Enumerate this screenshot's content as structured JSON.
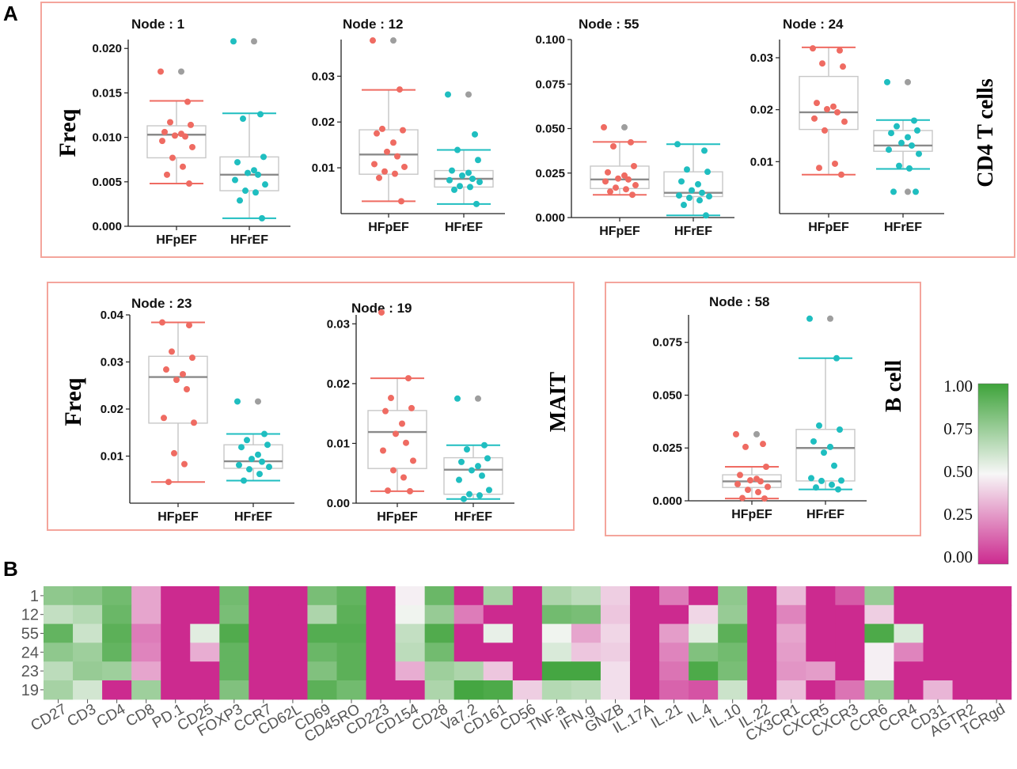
{
  "panel_labels": {
    "a": "A",
    "b": "B"
  },
  "colors": {
    "hfpef": "#ef6b62",
    "hfref": "#1fbec0",
    "outlier": "#9e9e9e",
    "box": "#c8c8c8",
    "median": "#8a8a8a",
    "panel_border": "#f4a59c",
    "heat_low": "#cc2a8f",
    "heat_mid": "#f7f7f7",
    "heat_high": "#3ea33a"
  },
  "group_labels": {
    "cd4": "CD4 T cells",
    "mait": "MAIT",
    "bcell": "B cell"
  },
  "freq_labels": {
    "top": "Freq",
    "bottom": "Freq"
  },
  "chart_data": [
    {
      "type": "box",
      "title": "Node : 1",
      "ylabel": "Freq",
      "ylim": [
        0,
        0.021
      ],
      "yticks": [
        {
          "v": 0,
          "label": "0.000"
        },
        {
          "v": 0.005,
          "label": "0.005"
        },
        {
          "v": 0.01,
          "label": "0.010"
        },
        {
          "v": 0.015,
          "label": "0.015"
        },
        {
          "v": 0.02,
          "label": "0.020"
        }
      ],
      "groups": [
        {
          "name": "HFpEF",
          "q1": 0.0077,
          "median": 0.0103,
          "q3": 0.0113,
          "whisker_low": 0.0048,
          "whisker_high": 0.0141,
          "points": [
            0.0174,
            0.014,
            0.0117,
            0.0114,
            0.0106,
            0.0104,
            0.0102,
            0.0101,
            0.0096,
            0.0089,
            0.0077,
            0.0067,
            0.0058,
            0.0048
          ],
          "outliers": [
            0.0174
          ]
        },
        {
          "name": "HFrEF",
          "q1": 0.004,
          "median": 0.0058,
          "q3": 0.0078,
          "whisker_low": 0.0009,
          "whisker_high": 0.0127,
          "points": [
            0.0208,
            0.0126,
            0.0121,
            0.0078,
            0.0072,
            0.0063,
            0.006,
            0.0058,
            0.0052,
            0.0047,
            0.004,
            0.0038,
            0.0029,
            0.0009
          ],
          "outliers": [
            0.0208
          ]
        }
      ]
    },
    {
      "type": "box",
      "title": "Node : 12",
      "ylabel": "",
      "ylim": [
        0,
        0.038
      ],
      "yticks": [
        {
          "v": 0.01,
          "label": "0.01"
        },
        {
          "v": 0.02,
          "label": "0.02"
        },
        {
          "v": 0.03,
          "label": "0.03"
        }
      ],
      "groups": [
        {
          "name": "HFpEF",
          "q1": 0.0086,
          "median": 0.0129,
          "q3": 0.0183,
          "whisker_low": 0.0027,
          "whisker_high": 0.027,
          "points": [
            0.0378,
            0.0271,
            0.0185,
            0.0182,
            0.0175,
            0.0155,
            0.0135,
            0.0125,
            0.0108,
            0.0102,
            0.0092,
            0.0087,
            0.0078,
            0.0027
          ],
          "outliers": [
            0.0378
          ]
        },
        {
          "name": "HFrEF",
          "q1": 0.0058,
          "median": 0.0076,
          "q3": 0.0094,
          "whisker_low": 0.0021,
          "whisker_high": 0.0139,
          "points": [
            0.026,
            0.0173,
            0.0139,
            0.0117,
            0.0094,
            0.0089,
            0.0083,
            0.0076,
            0.0073,
            0.0069,
            0.006,
            0.0058,
            0.0052,
            0.0021
          ],
          "outliers": [
            0.026
          ]
        }
      ]
    },
    {
      "type": "box",
      "title": "Node : 55",
      "ylabel": "",
      "ylim": [
        0,
        0.1
      ],
      "yticks": [
        {
          "v": 0,
          "label": "0.000"
        },
        {
          "v": 0.025,
          "label": "0.025"
        },
        {
          "v": 0.05,
          "label": "0.050"
        },
        {
          "v": 0.075,
          "label": "0.075"
        },
        {
          "v": 0.1,
          "label": "0.100"
        }
      ],
      "groups": [
        {
          "name": "HFpEF",
          "q1": 0.0163,
          "median": 0.0214,
          "q3": 0.0289,
          "whisker_low": 0.0128,
          "whisker_high": 0.0425,
          "points": [
            0.0507,
            0.0423,
            0.04,
            0.0289,
            0.0254,
            0.0236,
            0.0219,
            0.0214,
            0.0203,
            0.0182,
            0.0168,
            0.0159,
            0.0146,
            0.0128
          ],
          "outliers": [
            0.0507
          ]
        },
        {
          "name": "HFrEF",
          "q1": 0.0118,
          "median": 0.0139,
          "q3": 0.0257,
          "whisker_low": 0.0012,
          "whisker_high": 0.0412,
          "points": [
            0.0412,
            0.0376,
            0.027,
            0.0257,
            0.0203,
            0.0187,
            0.0153,
            0.0139,
            0.0124,
            0.0119,
            0.0111,
            0.0097,
            0.0071,
            0.0012
          ],
          "outliers": []
        }
      ]
    },
    {
      "type": "box",
      "title": "Node : 24",
      "ylabel": "",
      "ylim": [
        0,
        0.0335
      ],
      "yticks": [
        {
          "v": 0.01,
          "label": "0.01"
        },
        {
          "v": 0.02,
          "label": "0.02"
        },
        {
          "v": 0.03,
          "label": "0.03"
        }
      ],
      "groups": [
        {
          "name": "HFpEF",
          "q1": 0.0162,
          "median": 0.0195,
          "q3": 0.0264,
          "whisker_low": 0.0075,
          "whisker_high": 0.032,
          "points": [
            0.0318,
            0.0314,
            0.0289,
            0.0283,
            0.0213,
            0.0206,
            0.0201,
            0.0195,
            0.0183,
            0.0177,
            0.016,
            0.0096,
            0.0088,
            0.0075
          ],
          "outliers": []
        },
        {
          "name": "HFrEF",
          "q1": 0.012,
          "median": 0.0131,
          "q3": 0.016,
          "whisker_low": 0.0086,
          "whisker_high": 0.018,
          "points": [
            0.0253,
            0.0179,
            0.0168,
            0.016,
            0.0155,
            0.0147,
            0.0136,
            0.0131,
            0.0123,
            0.0115,
            0.0092,
            0.0087,
            0.0042,
            0.0042
          ],
          "outliers": [
            0.0253,
            0.0042
          ]
        }
      ]
    },
    {
      "type": "box",
      "title": "Node : 23",
      "ylabel": "Freq",
      "ylim": [
        0,
        0.04
      ],
      "yticks": [
        {
          "v": 0.01,
          "label": "0.01"
        },
        {
          "v": 0.02,
          "label": "0.02"
        },
        {
          "v": 0.03,
          "label": "0.03"
        },
        {
          "v": 0.04,
          "label": "0.04"
        }
      ],
      "groups": [
        {
          "name": "HFpEF",
          "q1": 0.017,
          "median": 0.0268,
          "q3": 0.0312,
          "whisker_low": 0.0045,
          "whisker_high": 0.0384,
          "points": [
            0.0384,
            0.0378,
            0.0322,
            0.0309,
            0.0284,
            0.0274,
            0.0262,
            0.0242,
            0.0181,
            0.0171,
            0.0106,
            0.0083,
            0.0045
          ],
          "outliers": []
        },
        {
          "name": "HFrEF",
          "q1": 0.0074,
          "median": 0.0089,
          "q3": 0.0124,
          "whisker_low": 0.0048,
          "whisker_high": 0.0147,
          "points": [
            0.0216,
            0.0147,
            0.0134,
            0.0124,
            0.0119,
            0.0103,
            0.0094,
            0.0088,
            0.0081,
            0.0077,
            0.0072,
            0.0062,
            0.0048
          ],
          "outliers": [
            0.0216
          ]
        }
      ]
    },
    {
      "type": "box",
      "title": "Node : 19",
      "ylabel": "",
      "ylim": [
        0,
        0.0315
      ],
      "yticks": [
        {
          "v": 0,
          "label": "0.00"
        },
        {
          "v": 0.01,
          "label": "0.01"
        },
        {
          "v": 0.02,
          "label": "0.02"
        },
        {
          "v": 0.03,
          "label": "0.03"
        }
      ],
      "groups": [
        {
          "name": "HFpEF",
          "q1": 0.0058,
          "median": 0.0119,
          "q3": 0.0155,
          "whisker_low": 0.002,
          "whisker_high": 0.0209,
          "points": [
            0.0319,
            0.0209,
            0.0176,
            0.0159,
            0.0154,
            0.0133,
            0.0116,
            0.0101,
            0.0088,
            0.0071,
            0.0055,
            0.0043,
            0.0021,
            0.002
          ],
          "outliers": []
        },
        {
          "name": "HFrEF",
          "q1": 0.0015,
          "median": 0.0056,
          "q3": 0.0076,
          "whisker_low": 0.0007,
          "whisker_high": 0.0097,
          "points": [
            0.0175,
            0.0097,
            0.009,
            0.0075,
            0.0069,
            0.0062,
            0.0055,
            0.0046,
            0.0039,
            0.0022,
            0.0015,
            0.0013,
            0.0007
          ],
          "outliers": [
            0.0175
          ]
        }
      ]
    },
    {
      "type": "box",
      "title": "Node : 58",
      "ylabel": "",
      "ylim": [
        0,
        0.088
      ],
      "yticks": [
        {
          "v": 0,
          "label": "0.000"
        },
        {
          "v": 0.025,
          "label": "0.025"
        },
        {
          "v": 0.05,
          "label": "0.050"
        },
        {
          "v": 0.075,
          "label": "0.075"
        }
      ],
      "groups": [
        {
          "name": "HFpEF",
          "q1": 0.0063,
          "median": 0.0092,
          "q3": 0.0123,
          "whisker_low": 0.0011,
          "whisker_high": 0.0161,
          "points": [
            0.0315,
            0.0269,
            0.0255,
            0.0161,
            0.0122,
            0.0104,
            0.0097,
            0.0092,
            0.0079,
            0.0066,
            0.0052,
            0.0041,
            0.0013,
            0.0011
          ],
          "outliers": [
            0.0315
          ]
        },
        {
          "name": "HFrEF",
          "q1": 0.0094,
          "median": 0.025,
          "q3": 0.0338,
          "whisker_low": 0.0054,
          "whisker_high": 0.0675,
          "points": [
            0.0862,
            0.0675,
            0.0356,
            0.0337,
            0.0281,
            0.0255,
            0.0228,
            0.0166,
            0.0107,
            0.0096,
            0.0094,
            0.0076,
            0.0063,
            0.0054
          ],
          "outliers": [
            0.0862
          ]
        }
      ]
    },
    {
      "type": "heatmap",
      "rows": [
        "1",
        "12",
        "55",
        "24",
        "23",
        "19"
      ],
      "columns": [
        "CD27",
        "CD3",
        "CD4",
        "CD8",
        "PD.1",
        "CD25",
        "FOXP3",
        "CCR7",
        "CD62L",
        "CD69",
        "CD45RO",
        "CD223",
        "CD154",
        "CD28",
        "Va7.2",
        "CD161",
        "CD56",
        "TNF.a",
        "IFN.g",
        "GNZB",
        "IL.17A",
        "IL.21",
        "IL.4",
        "IL.10",
        "IL.22",
        "CX3CR1",
        "CXCR5",
        "CXCR3",
        "CCR6",
        "CCR4",
        "CD31",
        "AGTR2",
        "TCRgd"
      ],
      "values": [
        [
          0.78,
          0.8,
          0.86,
          0.3,
          0,
          0,
          0.86,
          0,
          0,
          0.84,
          0.9,
          0,
          0.48,
          0.88,
          0,
          0.72,
          0,
          0.7,
          0.66,
          0.4,
          0,
          0.2,
          0,
          0.78,
          0,
          0.35,
          0,
          0.12,
          0.76,
          0,
          0,
          0,
          0
        ],
        [
          0.64,
          0.68,
          0.88,
          0.3,
          0,
          0,
          0.84,
          0,
          0,
          0.7,
          0.92,
          0,
          0.52,
          0.76,
          0.2,
          0,
          0,
          0.86,
          0.84,
          0.38,
          0,
          0,
          0.42,
          0.76,
          0,
          0.22,
          0,
          0,
          0.4,
          0,
          0,
          0,
          0
        ],
        [
          0.9,
          0.62,
          0.92,
          0.2,
          0,
          0.56,
          0.95,
          0,
          0,
          0.94,
          0.94,
          0,
          0.64,
          0.95,
          0,
          0.54,
          0,
          0.52,
          0.3,
          0.42,
          0,
          0.28,
          0.56,
          0.92,
          0,
          0.3,
          0,
          0,
          0.96,
          0.58,
          0,
          0,
          0
        ],
        [
          0.78,
          0.74,
          0.9,
          0.22,
          0,
          0.32,
          0.9,
          0,
          0,
          0.88,
          0.92,
          0,
          0.66,
          0.86,
          0,
          0,
          0,
          0.58,
          0.38,
          0.4,
          0,
          0.22,
          0.82,
          0.86,
          0,
          0.28,
          0,
          0,
          0.48,
          0.22,
          0,
          0,
          0
        ],
        [
          0.66,
          0.76,
          0.74,
          0.3,
          0,
          0,
          0.9,
          0,
          0,
          0.82,
          0.92,
          0,
          0.32,
          0.74,
          0.7,
          0.38,
          0,
          0.98,
          0.98,
          0.44,
          0,
          0.18,
          0.96,
          0.84,
          0,
          0.26,
          0.28,
          0,
          0.48,
          0,
          0,
          0,
          0
        ],
        [
          0.72,
          0.6,
          0,
          0.74,
          0,
          0,
          0.82,
          0,
          0,
          0.92,
          0.86,
          0,
          0,
          0.7,
          0.98,
          0.96,
          0.4,
          0.68,
          0.66,
          0.44,
          0,
          0.14,
          0.1,
          0.62,
          0,
          0.36,
          0,
          0.18,
          0.76,
          0,
          0.34,
          0,
          0
        ]
      ],
      "colorbar": {
        "ticks": [
          "1.00",
          "0.75",
          "0.50",
          "0.25",
          "0.00"
        ],
        "range": [
          0,
          1
        ]
      }
    }
  ]
}
